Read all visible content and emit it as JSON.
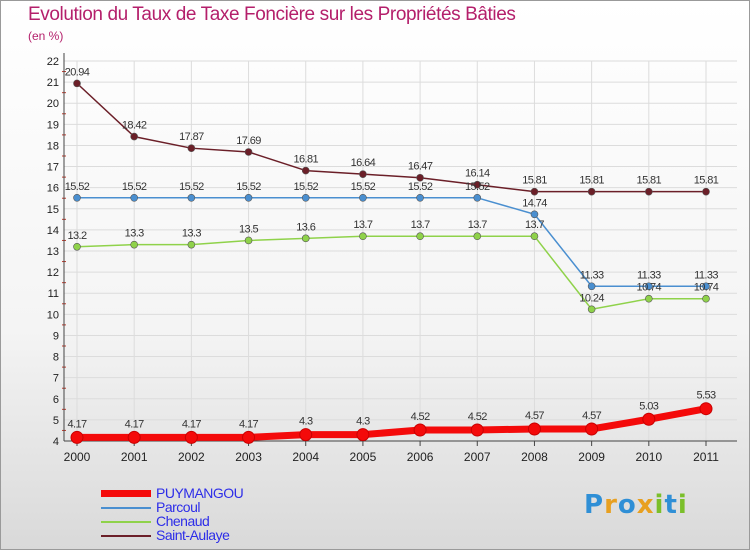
{
  "title": "Evolution du Taux de Taxe Foncière sur les Propriétés Bâties",
  "subtitle": "(en %)",
  "brand": {
    "letters": [
      "P",
      "r",
      "o",
      "x",
      "i",
      "t",
      "i"
    ],
    "colors": [
      "#2f8fd6",
      "#e8a020",
      "#2f8fd6",
      "#e8a020",
      "#7bbf2a",
      "#2f8fd6",
      "#7bbf2a"
    ]
  },
  "chart_data": {
    "type": "line",
    "title": "Evolution du Taux de Taxe Foncière sur les Propriétés Bâties",
    "ylabel": "(en %)",
    "xlabel": "",
    "x": [
      "2000",
      "2001",
      "2002",
      "2003",
      "2004",
      "2005",
      "2006",
      "2007",
      "2008",
      "2009",
      "2010",
      "2011"
    ],
    "ylim": [
      4,
      22
    ],
    "yticks": [
      "4",
      "5",
      "6",
      "7",
      "8",
      "9",
      "10",
      "11",
      "12",
      "13",
      "14",
      "15",
      "16",
      "17",
      "18",
      "19",
      "20",
      "21",
      "22"
    ],
    "grid": true,
    "legend_position": "bottom-left",
    "series": [
      {
        "name": "Saint-Aulaye",
        "color": "#6b1f28",
        "values": [
          20.94,
          18.42,
          17.87,
          17.69,
          16.81,
          16.64,
          16.47,
          16.14,
          15.81,
          15.81,
          15.81,
          15.81
        ],
        "labels": [
          "20.94",
          "18.42",
          "17.87",
          "17.69",
          "16.81",
          "16.64",
          "16.47",
          "16.14",
          "15.81",
          "15.81",
          "15.81",
          "15.81"
        ]
      },
      {
        "name": "Parcoul",
        "color": "#4a8fd0",
        "values": [
          15.52,
          15.52,
          15.52,
          15.52,
          15.52,
          15.52,
          15.52,
          15.52,
          14.74,
          11.33,
          11.33,
          11.33
        ],
        "labels": [
          "15.52",
          "15.52",
          "15.52",
          "15.52",
          "15.52",
          "15.52",
          "15.52",
          "15.52",
          "14.74",
          "11.33",
          "11.33",
          "11.33"
        ]
      },
      {
        "name": "Chenaud",
        "color": "#8fd24a",
        "values": [
          13.2,
          13.3,
          13.3,
          13.5,
          13.6,
          13.7,
          13.7,
          13.7,
          13.7,
          10.24,
          10.74,
          10.74
        ],
        "labels": [
          "13.2",
          "13.3",
          "13.3",
          "13.5",
          "13.6",
          "13.7",
          "13.7",
          "13.7",
          "13.7",
          "10.24",
          "10.74",
          "10.74"
        ]
      },
      {
        "name": "PUYMANGOU",
        "color": "#f40a0a",
        "values": [
          4.17,
          4.17,
          4.17,
          4.17,
          4.3,
          4.3,
          4.52,
          4.52,
          4.57,
          4.57,
          5.03,
          5.53
        ],
        "labels": [
          "4.17",
          "4.17",
          "4.17",
          "4.17",
          "4.3",
          "4.3",
          "4.52",
          "4.52",
          "4.57",
          "4.57",
          "5.03",
          "5.53"
        ]
      }
    ],
    "legend": [
      {
        "name": "PUYMANGOU",
        "color": "#f40a0a",
        "text_color": "#2d2de8"
      },
      {
        "name": "Parcoul",
        "color": "#4a8fd0",
        "text_color": "#2d2de8"
      },
      {
        "name": "Chenaud",
        "color": "#8fd24a",
        "text_color": "#2d2de8"
      },
      {
        "name": "Saint-Aulaye",
        "color": "#6b1f28",
        "text_color": "#2d2de8"
      }
    ]
  }
}
